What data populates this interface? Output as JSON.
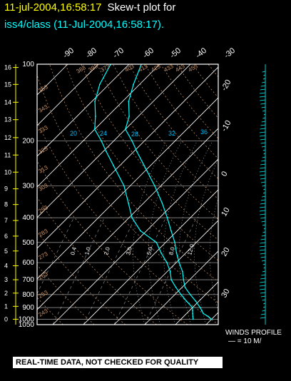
{
  "header": {
    "date_time": "11-jul-2004,16:58:17",
    "title": "Skew-t plot for",
    "subtitle": "iss4/class (11-Jul-2004,16:58:17)."
  },
  "footer": {
    "banner": "REAL-TIME DATA, NOT CHECKED FOR QUALITY",
    "winds_label": "WINDS PROFILE",
    "winds_scale": "— = 10 M/"
  },
  "colors": {
    "background": "#000000",
    "frame": "#ffffff",
    "isobar": "#ffffff",
    "height_ticks": "#ffff00",
    "dry_adiabat": "#c8966e",
    "moist_adiabat": "#ffffff",
    "mixing_ratio_label": "#00bfff",
    "sounding": "#00ffff"
  },
  "chart_data": {
    "type": "line",
    "diagram": "skew-T log-P",
    "pressure_axis_hPa": {
      "range": [
        1050,
        100
      ],
      "scale": "log",
      "tick_labels": [
        "100",
        "200",
        "300",
        "400",
        "500",
        "600",
        "700",
        "800",
        "900",
        "1000",
        "1050"
      ]
    },
    "height_axis_km": {
      "tick_labels": [
        "0",
        "1",
        "2",
        "3",
        "4",
        "5",
        "6",
        "7",
        "8",
        "9",
        "10",
        "11",
        "12",
        "13",
        "14",
        "15",
        "16"
      ]
    },
    "isotherm_labels_top_C": [
      "-90",
      "-80",
      "-70",
      "-60",
      "-50",
      "-40",
      "-30"
    ],
    "isotherm_labels_right_C": [
      "-20",
      "-10",
      "0",
      "10",
      "20",
      "30"
    ],
    "mixing_ratio_labels": [
      "20",
      "24",
      "28",
      "32",
      "36"
    ],
    "dry_adiabat_labels_K": [
      "403",
      "413",
      "423",
      "433",
      "443",
      "453",
      "373",
      "393",
      "383",
      "353",
      "343",
      "333",
      "323",
      "313",
      "303",
      "293",
      "283",
      "273",
      "263",
      "253",
      "243"
    ],
    "moist_adiabat_labels": [
      "0.4",
      "1.0",
      "2.0",
      "3.0",
      "5.0",
      "8.0",
      "12.0"
    ],
    "series": [
      {
        "name": "Temperature",
        "points": [
          {
            "p": 1000,
            "t": 30
          },
          {
            "p": 975,
            "t": 28
          },
          {
            "p": 950,
            "t": 25.5
          },
          {
            "p": 925,
            "t": 24
          },
          {
            "p": 900,
            "t": 22.5
          },
          {
            "p": 850,
            "t": 19
          },
          {
            "p": 800,
            "t": 15
          },
          {
            "p": 750,
            "t": 11
          },
          {
            "p": 700,
            "t": 8
          },
          {
            "p": 650,
            "t": 5
          },
          {
            "p": 600,
            "t": 1
          },
          {
            "p": 550,
            "t": -3
          },
          {
            "p": 500,
            "t": -7
          },
          {
            "p": 450,
            "t": -12
          },
          {
            "p": 400,
            "t": -17.5
          },
          {
            "p": 350,
            "t": -24
          },
          {
            "p": 300,
            "t": -32
          },
          {
            "p": 250,
            "t": -42
          },
          {
            "p": 220,
            "t": -49
          },
          {
            "p": 200,
            "t": -54
          },
          {
            "p": 180,
            "t": -60
          },
          {
            "p": 160,
            "t": -63
          },
          {
            "p": 140,
            "t": -68
          },
          {
            "p": 120,
            "t": -72
          },
          {
            "p": 100,
            "t": -76
          }
        ]
      },
      {
        "name": "Dew point",
        "points": [
          {
            "p": 1000,
            "t": 24
          },
          {
            "p": 975,
            "t": 23
          },
          {
            "p": 950,
            "t": 22
          },
          {
            "p": 925,
            "t": 21
          },
          {
            "p": 900,
            "t": 20
          },
          {
            "p": 850,
            "t": 16
          },
          {
            "p": 800,
            "t": 12
          },
          {
            "p": 750,
            "t": 8
          },
          {
            "p": 700,
            "t": 4
          },
          {
            "p": 650,
            "t": 1
          },
          {
            "p": 600,
            "t": -3
          },
          {
            "p": 550,
            "t": -8
          },
          {
            "p": 500,
            "t": -13
          },
          {
            "p": 450,
            "t": -22
          },
          {
            "p": 400,
            "t": -29
          },
          {
            "p": 350,
            "t": -35
          },
          {
            "p": 300,
            "t": -42
          },
          {
            "p": 250,
            "t": -52
          },
          {
            "p": 220,
            "t": -59
          },
          {
            "p": 200,
            "t": -64
          },
          {
            "p": 180,
            "t": -70
          },
          {
            "p": 160,
            "t": -74
          },
          {
            "p": 140,
            "t": -79
          },
          {
            "p": 120,
            "t": -83
          },
          {
            "p": 100,
            "t": -86
          }
        ]
      }
    ]
  }
}
